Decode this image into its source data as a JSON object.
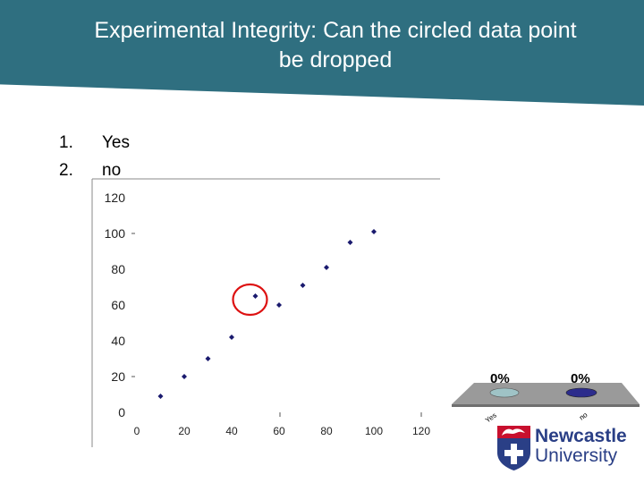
{
  "slide": {
    "title_line1": "Experimental Integrity: Can the circled data point",
    "title_line2": "be dropped"
  },
  "options": [
    {
      "number": "1.",
      "label": "Yes"
    },
    {
      "number": "2.",
      "label": "no"
    }
  ],
  "chart_data": {
    "type": "scatter",
    "x_ticks": [
      0,
      20,
      40,
      60,
      80,
      100,
      120
    ],
    "y_ticks": [
      0,
      20,
      40,
      60,
      80,
      100,
      120
    ],
    "xlim": [
      0,
      120
    ],
    "ylim": [
      0,
      120
    ],
    "points": [
      {
        "x": 10,
        "y": 9
      },
      {
        "x": 20,
        "y": 20
      },
      {
        "x": 30,
        "y": 30
      },
      {
        "x": 40,
        "y": 42
      },
      {
        "x": 50,
        "y": 65
      },
      {
        "x": 60,
        "y": 60
      },
      {
        "x": 70,
        "y": 71
      },
      {
        "x": 80,
        "y": 81
      },
      {
        "x": 90,
        "y": 95
      },
      {
        "x": 100,
        "y": 101
      }
    ],
    "circled_point_index": 4,
    "point_color": "#1a1a6e",
    "circle_color": "#dd1111"
  },
  "poll": {
    "results": [
      {
        "label": "Yes",
        "percent": "0%",
        "color": "#9fc3c6"
      },
      {
        "label": "no",
        "percent": "0%",
        "color": "#2c2c8c"
      }
    ],
    "platform_color": "#9a9a9a"
  },
  "logo": {
    "text_line1": "Newcastle",
    "text_line2": "University",
    "text_color": "#2a3f86",
    "crest_color": "#c8102e"
  }
}
